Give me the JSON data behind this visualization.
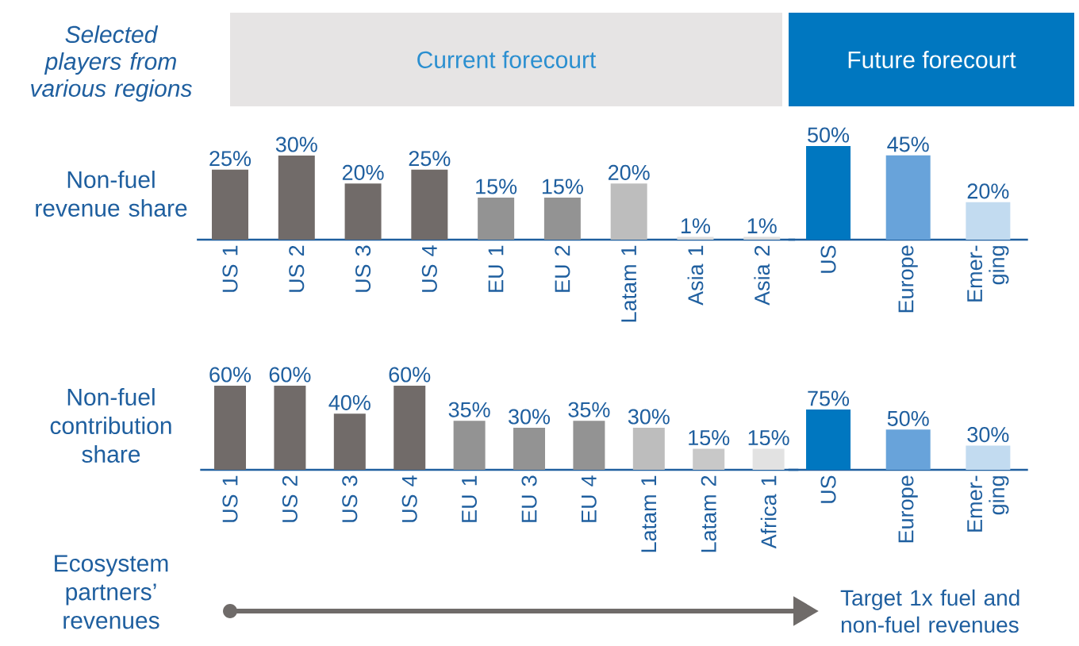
{
  "chart_data": [
    {
      "type": "bar",
      "title": "Current forecourt",
      "ylabel": "Non-fuel revenue share",
      "annotations": [
        "Selected players from various regions"
      ],
      "categories": [
        "US 1",
        "US 2",
        "US 3",
        "US 4",
        "EU 1",
        "EU 2",
        "Latam 1",
        "Asia 1",
        "Asia 2"
      ],
      "values": [
        25,
        30,
        20,
        25,
        15,
        15,
        20,
        1,
        1
      ],
      "value_labels": [
        "25%",
        "30%",
        "20%",
        "25%",
        "15%",
        "15%",
        "20%",
        "1%",
        "1%"
      ],
      "colors": [
        "#716b69",
        "#716b69",
        "#716b69",
        "#716b69",
        "#939393",
        "#939393",
        "#bdbdbd",
        "#dddddd",
        "#dddddd"
      ]
    },
    {
      "type": "bar",
      "title": "Future forecourt",
      "categories": [
        "US",
        "Europe",
        "Emer-ging"
      ],
      "values": [
        50,
        45,
        20
      ],
      "value_labels": [
        "50%",
        "45%",
        "20%"
      ],
      "colors": [
        "#0077c0",
        "#68a3da",
        "#c2dbf0"
      ]
    },
    {
      "type": "bar",
      "ylabel": "Non-fuel contribution share",
      "annotations": [
        "Ecosystem partners’ revenues",
        "Target 1x fuel and non-fuel revenues"
      ],
      "categories": [
        "US 1",
        "US 2",
        "US 3",
        "US 4",
        "EU 1",
        "EU 3",
        "EU 4",
        "Latam 1",
        "Latam 2",
        "Africa 1"
      ],
      "values": [
        60,
        60,
        40,
        60,
        35,
        30,
        35,
        30,
        15,
        15
      ],
      "value_labels": [
        "60%",
        "60%",
        "40%",
        "60%",
        "35%",
        "30%",
        "35%",
        "30%",
        "15%",
        "15%"
      ],
      "colors": [
        "#716b69",
        "#716b69",
        "#716b69",
        "#716b69",
        "#939393",
        "#939393",
        "#939393",
        "#bdbdbd",
        "#c8c8c8",
        "#e2e2e2"
      ]
    },
    {
      "type": "bar",
      "categories": [
        "US",
        "Europe",
        "Emer-ging"
      ],
      "values": [
        75,
        50,
        30
      ],
      "value_labels": [
        "75%",
        "50%",
        "30%"
      ],
      "colors": [
        "#0077c0",
        "#68a3da",
        "#c2dbf0"
      ]
    }
  ]
}
